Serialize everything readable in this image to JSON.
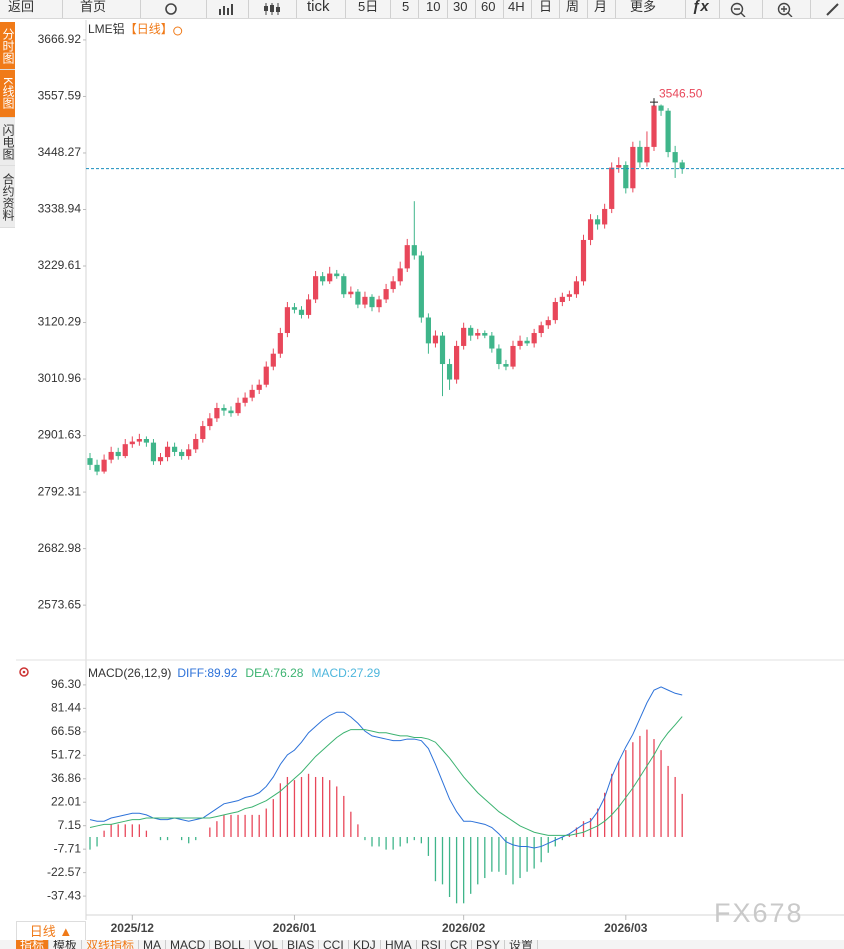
{
  "toolbar": [
    "返回",
    "首页",
    "tick",
    "5日",
    "5",
    "10",
    "30",
    "60",
    "4H",
    "日",
    "周",
    "月",
    "更多",
    "ƒx"
  ],
  "side_tabs": [
    "分时图",
    "K线图",
    "闪电图",
    "合约资料"
  ],
  "bottom_tab": "日线 ▲",
  "indicator_tabs": [
    "指标",
    "模板",
    "双线指标",
    "MA",
    "MACD",
    "BOLL",
    "VOL",
    "BIAS",
    "CCI",
    "KDJ",
    "HMA",
    "RSI",
    "CR",
    "PSY",
    "设置"
  ],
  "watermark": "FX678",
  "chart_data": [
    {
      "type": "candlestick",
      "title": "LME铝",
      "subtitle": "【日线】",
      "high_label": "3546.50",
      "up_color": "#e8475a",
      "down_color": "#3fb58a",
      "open": [
        2858,
        2845,
        2832,
        2855,
        2870,
        2862,
        2885,
        2890,
        2895,
        2888,
        2852,
        2860,
        2880,
        2870,
        2862,
        2875,
        2895,
        2920,
        2935,
        2955,
        2950,
        2945,
        2965,
        2975,
        2990,
        3000,
        3035,
        3060,
        3100,
        3150,
        3145,
        3135,
        3165,
        3210,
        3200,
        3215,
        3210,
        3175,
        3180,
        3155,
        3170,
        3150,
        3165,
        3185,
        3200,
        3225,
        3270,
        3250,
        3130,
        3080,
        3095,
        3040,
        3010,
        3075,
        3110,
        3095,
        3100,
        3095,
        3070,
        3040,
        3035,
        3075,
        3085,
        3080,
        3100,
        3115,
        3125,
        3160,
        3170,
        3175,
        3200,
        3280,
        3320,
        3310,
        3340,
        3420,
        3425,
        3380,
        3460,
        3430,
        3460,
        3540,
        3530,
        3450,
        3430
      ],
      "high": [
        2868,
        2855,
        2865,
        2880,
        2878,
        2895,
        2900,
        2905,
        2900,
        2895,
        2868,
        2890,
        2888,
        2875,
        2885,
        2905,
        2930,
        2945,
        2965,
        2962,
        2958,
        2975,
        2985,
        3000,
        3010,
        3045,
        3070,
        3110,
        3160,
        3158,
        3152,
        3175,
        3220,
        3218,
        3228,
        3222,
        3215,
        3190,
        3185,
        3180,
        3175,
        3172,
        3195,
        3210,
        3238,
        3282,
        3355,
        3258,
        3138,
        3105,
        3102,
        3050,
        3085,
        3120,
        3115,
        3108,
        3105,
        3102,
        3078,
        3048,
        3085,
        3095,
        3092,
        3108,
        3122,
        3132,
        3168,
        3178,
        3182,
        3210,
        3290,
        3330,
        3328,
        3350,
        3430,
        3440,
        3432,
        3470,
        3472,
        3490,
        3546.5,
        3542,
        3535,
        3462,
        3435
      ],
      "low": [
        2835,
        2825,
        2828,
        2848,
        2855,
        2858,
        2878,
        2882,
        2880,
        2845,
        2845,
        2852,
        2862,
        2855,
        2855,
        2868,
        2888,
        2912,
        2928,
        2940,
        2938,
        2940,
        2958,
        2968,
        2982,
        2995,
        3028,
        3052,
        3092,
        3138,
        3128,
        3128,
        3158,
        3192,
        3195,
        3205,
        3168,
        3168,
        3148,
        3148,
        3142,
        3140,
        3158,
        3178,
        3192,
        3218,
        3242,
        3120,
        3060,
        3072,
        2978,
        2990,
        3002,
        3068,
        3085,
        3088,
        3090,
        3062,
        3030,
        3028,
        3030,
        3068,
        3075,
        3072,
        3092,
        3108,
        3118,
        3152,
        3162,
        3168,
        3192,
        3270,
        3300,
        3302,
        3332,
        3410,
        3370,
        3372,
        3420,
        3422,
        3452,
        3520,
        3440,
        3400,
        3408
      ],
      "close": [
        2845,
        2832,
        2855,
        2870,
        2862,
        2885,
        2890,
        2895,
        2888,
        2852,
        2860,
        2880,
        2870,
        2862,
        2875,
        2895,
        2920,
        2935,
        2955,
        2950,
        2945,
        2965,
        2975,
        2990,
        3000,
        3035,
        3060,
        3100,
        3150,
        3145,
        3135,
        3165,
        3210,
        3200,
        3215,
        3210,
        3175,
        3180,
        3155,
        3170,
        3150,
        3165,
        3185,
        3200,
        3225,
        3270,
        3250,
        3130,
        3080,
        3095,
        3040,
        3010,
        3075,
        3110,
        3095,
        3100,
        3095,
        3070,
        3040,
        3035,
        3075,
        3085,
        3080,
        3100,
        3115,
        3125,
        3160,
        3170,
        3175,
        3200,
        3280,
        3320,
        3310,
        3340,
        3420,
        3425,
        3380,
        3460,
        3430,
        3460,
        3540,
        3530,
        3450,
        3430,
        3418
      ],
      "ylim": [
        2471.4,
        3701.6
      ],
      "yticks": [
        3666.92,
        3557.59,
        3448.27,
        3338.94,
        3229.61,
        3120.29,
        3010.96,
        2901.63,
        2792.31,
        2682.98,
        2573.65
      ]
    },
    {
      "type": "macd",
      "title": "MACD(26,12,9)",
      "legend": [
        "DIFF:89.92",
        "DEA:76.28",
        "MACD:27.29"
      ],
      "series": [
        {
          "color": "#2d72d9",
          "values": [
            11,
            10,
            10,
            12,
            13,
            14,
            15,
            15,
            14,
            12,
            11,
            11,
            12,
            11,
            10,
            11,
            12,
            15,
            18,
            21,
            22,
            23,
            25,
            26,
            28,
            32,
            38,
            46,
            52,
            55,
            60,
            66,
            70,
            74,
            77,
            79,
            79,
            76,
            72,
            67,
            64,
            63,
            62,
            61,
            61,
            62,
            62,
            61,
            56,
            46,
            35,
            24,
            16,
            10,
            10,
            9,
            8,
            6,
            2,
            -3,
            -5,
            -6,
            -6,
            -7,
            -6,
            -4,
            -2,
            0,
            2,
            5,
            8,
            10,
            16,
            25,
            38,
            48,
            57,
            65,
            75,
            85,
            93,
            95,
            93,
            91,
            89.92
          ]
        },
        {
          "color": "#3cb371",
          "values": [
            6,
            7,
            8,
            8,
            9,
            10,
            11,
            11,
            12,
            12,
            12,
            12,
            12,
            12,
            12,
            12,
            12,
            12,
            13,
            14,
            15,
            16,
            18,
            19,
            21,
            23,
            26,
            29,
            33,
            37,
            41,
            46,
            51,
            55,
            59,
            63,
            66,
            68,
            68,
            68,
            67,
            66,
            66,
            65,
            64,
            64,
            63,
            63,
            62,
            60,
            55,
            50,
            44,
            38,
            33,
            28,
            24,
            20,
            16,
            13,
            10,
            7,
            5,
            3,
            2,
            1,
            1,
            1,
            1,
            2,
            3,
            5,
            7,
            10,
            14,
            19,
            25,
            31,
            38,
            45,
            52,
            60,
            66,
            71,
            76.28
          ]
        },
        {
          "color": "#4db6dc",
          "up_color": "#e8475a",
          "down_color": "#3fb58a",
          "values": [
            -8,
            -6,
            4,
            8,
            8,
            8,
            8,
            8,
            4,
            0,
            -2,
            -2,
            0,
            -2,
            -4,
            -2,
            0,
            6,
            10,
            14,
            14,
            14,
            14,
            14,
            14,
            18,
            24,
            34,
            38,
            36,
            38,
            40,
            38,
            38,
            36,
            32,
            26,
            16,
            8,
            -2,
            -6,
            -6,
            -8,
            -8,
            -6,
            -4,
            -2,
            -4,
            -12,
            -28,
            -30,
            -38,
            -42,
            -42,
            -36,
            -30,
            -26,
            -22,
            -22,
            -24,
            -30,
            -26,
            -22,
            -20,
            -16,
            -10,
            -6,
            -2,
            2,
            6,
            10,
            12,
            18,
            28,
            40,
            48,
            55,
            60,
            64,
            68,
            62,
            55,
            45,
            38,
            27.29
          ]
        }
      ],
      "ylim": [
        -49.4,
        108.9
      ],
      "yticks": [
        {
          "value": 96.3,
          "label": "96.30"
        },
        81.44,
        66.58,
        51.72,
        36.86,
        22.01,
        7.15,
        -7.71,
        -22.57,
        -37.43
      ],
      "xticks": [
        {
          "value": 6,
          "label": "2025/12"
        },
        {
          "value": 29,
          "label": "2026/01"
        },
        {
          "value": 53,
          "label": "2026/02"
        },
        {
          "value": 76,
          "label": "2026/03"
        }
      ]
    }
  ]
}
